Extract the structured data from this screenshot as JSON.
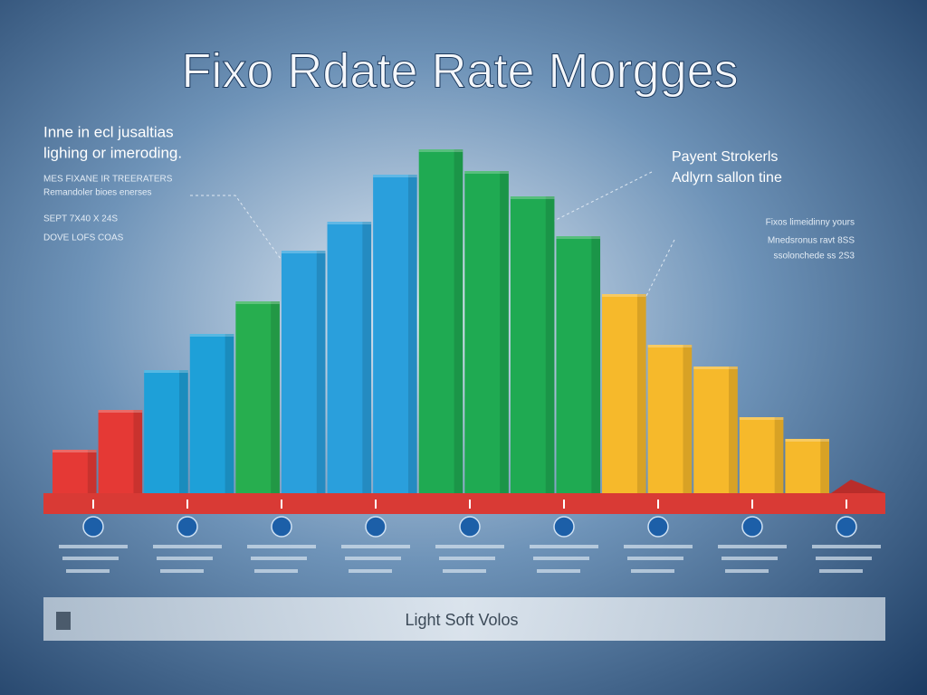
{
  "chart_data": {
    "type": "bar",
    "title": "Fixo Rdate Rate Morgges",
    "values": [
      12,
      23,
      34,
      44,
      53,
      67,
      75,
      88,
      95,
      89,
      82,
      71,
      55,
      41,
      35,
      21,
      15
    ],
    "colors": [
      "#e53935",
      "#e53935",
      "#1ea0d8",
      "#1ea0d8",
      "#27ae4f",
      "#2a9fdc",
      "#2a9fdc",
      "#2a9fdc",
      "#1faa52",
      "#1faa52",
      "#1faa52",
      "#1faa52",
      "#f6b92b",
      "#f6b92b",
      "#f6b92b",
      "#f6b92b",
      "#f6b92b"
    ],
    "ylim": [
      0,
      100
    ],
    "annotations": {
      "left": [
        "Inne in ecl jusaltias",
        "lighing or imeroding.",
        "MES FIXANE IR TREERATERS",
        "Remandoler bioes enerses",
        "SEPT 7X40 X 24S",
        "DOVE LOFS COAS"
      ],
      "right": [
        "Payent Strokerls",
        "Adlyrn sallon tine",
        "Fixos limeidinny yours",
        "Mnedsronus ravt 8SS",
        "ssolonchede ss 2S3"
      ]
    },
    "footer": "Light Soft Volos"
  }
}
